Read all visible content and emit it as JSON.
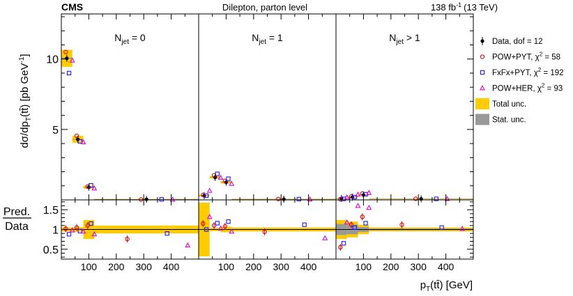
{
  "header": {
    "experiment": "CMS",
    "title": "Dilepton, parton level",
    "lumi_value": "138 fb",
    "lumi_exp": "-1",
    "energy": "(13 TeV)"
  },
  "colors": {
    "data": "#000000",
    "powpyt": "#e00000",
    "fxfx": "#1a1aff",
    "powher": "#e000e0",
    "total": "#ffcc00",
    "stat": "#999999"
  },
  "chart_data": {
    "type": "scatter",
    "title": "Dilepton, parton level",
    "xlabel": "p_T(ttbar) [GeV]",
    "ylabel_top": "dσ/dp_T(ttbar) [pb GeV^-1]",
    "ylabel_bottom": "Pred./Data",
    "x_ticks": [
      "100",
      "200",
      "300",
      "400"
    ],
    "x_tick_values": [
      100,
      200,
      300,
      400
    ],
    "x_range": [
      0,
      500
    ],
    "top_y_ticks": [
      "5",
      "10"
    ],
    "top_y_tick_values": [
      5,
      10
    ],
    "top_ylim": [
      0,
      13.2
    ],
    "bottom_y_ticks": [
      "0.5",
      "1",
      "1.5"
    ],
    "bottom_y_tick_values": [
      0.5,
      1.0,
      1.5
    ],
    "bottom_ylim": [
      0.25,
      1.75
    ],
    "bin_edges": [
      0,
      40,
      80,
      120,
      500
    ],
    "bin_centers": [
      20,
      60,
      100,
      310
    ],
    "mc_offsets": [
      0,
      12,
      24
    ],
    "panels": [
      {
        "label_main": "N",
        "label_sub": "jet",
        "label_tail": " = 0",
        "data": [
          10.05,
          4.3,
          0.9,
          0.04
        ],
        "total_unc": [
          0.6,
          0.25,
          0.1,
          0.008
        ],
        "stat_unc": [
          0.05,
          0.03,
          0.01,
          0.002
        ],
        "pow_pyt": [
          10.5,
          4.55,
          0.95,
          0.03
        ],
        "fxfx_pyt": [
          9.0,
          4.15,
          1.03,
          0.035
        ],
        "pow_her": [
          9.9,
          4.1,
          0.82,
          0.025
        ],
        "ratio_total_unc": [
          0.05,
          0.06,
          0.24,
          0.1
        ],
        "ratio_stat_unc": [
          0.005,
          0.005,
          0.01,
          0.01
        ],
        "ratio_pow_pyt": [
          1.02,
          1.05,
          1.1,
          0.76
        ],
        "ratio_fxfx_pyt": [
          0.88,
          0.96,
          1.15,
          0.9
        ],
        "ratio_pow_her": [
          0.98,
          0.95,
          0.88,
          0.6
        ]
      },
      {
        "label_main": "N",
        "label_sub": "jet",
        "label_tail": " = 1",
        "data": [
          0.3,
          1.6,
          1.25,
          0.05
        ],
        "total_unc": [
          0.06,
          0.09,
          0.09,
          0.01
        ],
        "stat_unc": [
          0.01,
          0.02,
          0.02,
          0.003
        ],
        "pow_pyt": [
          0.35,
          1.75,
          1.35,
          0.06
        ],
        "fxfx_pyt": [
          0.3,
          1.85,
          1.5,
          0.055
        ],
        "pow_her": [
          0.65,
          1.58,
          1.15,
          0.04
        ],
        "ratio_total_unc": [
          0.68,
          0.04,
          0.07,
          0.05
        ],
        "ratio_stat_unc": [
          0.01,
          0.005,
          0.01,
          0.01
        ],
        "ratio_pow_pyt": [
          1.15,
          1.1,
          1.08,
          0.94
        ],
        "ratio_fxfx_pyt": [
          1.0,
          1.16,
          1.2,
          1.12
        ],
        "ratio_pow_her": [
          1.32,
          1.03,
          0.95,
          0.78
        ]
      },
      {
        "label_main": "N",
        "label_sub": "jet",
        "label_tail": " > 1",
        "data": [
          0.1,
          0.2,
          0.35,
          0.07
        ],
        "total_unc": [
          0.03,
          0.04,
          0.04,
          0.01
        ],
        "stat_unc": [
          0.02,
          0.02,
          0.01,
          0.003
        ],
        "pow_pyt": [
          0.05,
          0.25,
          0.45,
          0.08
        ],
        "fxfx_pyt": [
          0.07,
          0.2,
          0.4,
          0.075
        ],
        "pow_her": [
          0.18,
          0.38,
          0.5,
          0.07
        ],
        "ratio_total_unc": [
          0.24,
          0.2,
          0.12,
          0.05
        ],
        "ratio_stat_unc": [
          0.14,
          0.12,
          0.06,
          0.02
        ],
        "ratio_pow_pyt": [
          0.55,
          1.12,
          1.32,
          1.12
        ],
        "ratio_fxfx_pyt": [
          0.65,
          1.05,
          1.16,
          1.05
        ],
        "ratio_pow_her": [
          1.18,
          1.6,
          1.55,
          1.02
        ]
      }
    ],
    "legend_position": "right",
    "legend": [
      {
        "key": "data",
        "label": "Data, dof = 12",
        "sup": ""
      },
      {
        "key": "powpyt",
        "label": "POW+PYT, χ",
        "sup": "2",
        "tail": " = 58"
      },
      {
        "key": "fxfx",
        "label": "FxFx+PYT, χ",
        "sup": "2",
        "tail": " = 192"
      },
      {
        "key": "powher",
        "label": "POW+HER, χ",
        "sup": "2",
        "tail": " = 93"
      },
      {
        "key": "total",
        "label": "Total unc.",
        "sup": ""
      },
      {
        "key": "stat",
        "label": "Stat. unc.",
        "sup": ""
      }
    ]
  }
}
